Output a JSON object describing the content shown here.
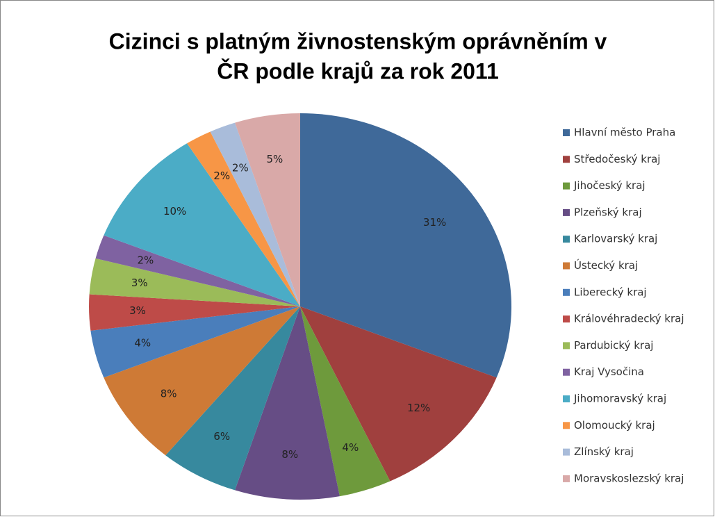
{
  "chart_data": {
    "type": "pie",
    "title": [
      "Cizinci s platným živnostenským oprávněním v",
      "ČR podle krajů za rok 2011"
    ],
    "categories": [
      "Hlavní město Praha",
      "Středočeský kraj",
      "Jihočeský kraj",
      "Plzeňský kraj",
      "Karlovarský kraj",
      "Ústecký kraj",
      "Liberecký kraj",
      "Královéhradecký kraj",
      "Pardubický kraj",
      "Kraj Vysočina",
      "Jihomoravský kraj",
      "Olomoucký kraj",
      "Zlínský kraj",
      "Moravskoslezský kraj"
    ],
    "values": [
      31,
      12,
      4,
      8,
      6,
      8,
      4,
      3,
      3,
      2,
      10,
      2,
      2,
      5
    ],
    "value_labels": [
      "31%",
      "12%",
      "4%",
      "8%",
      "6%",
      "8%",
      "4%",
      "3%",
      "3%",
      "2%",
      "10%",
      "2%",
      "2%",
      "5%"
    ],
    "colors": [
      "#3F6999",
      "#A0403E",
      "#6E9A3C",
      "#664D85",
      "#37899E",
      "#CE7A36",
      "#4A7EBB",
      "#BE4B48",
      "#9BBB59",
      "#7F62A1",
      "#4BACC6",
      "#F79646",
      "#A9BCDA",
      "#D9A9A8"
    ],
    "legend": "right"
  }
}
